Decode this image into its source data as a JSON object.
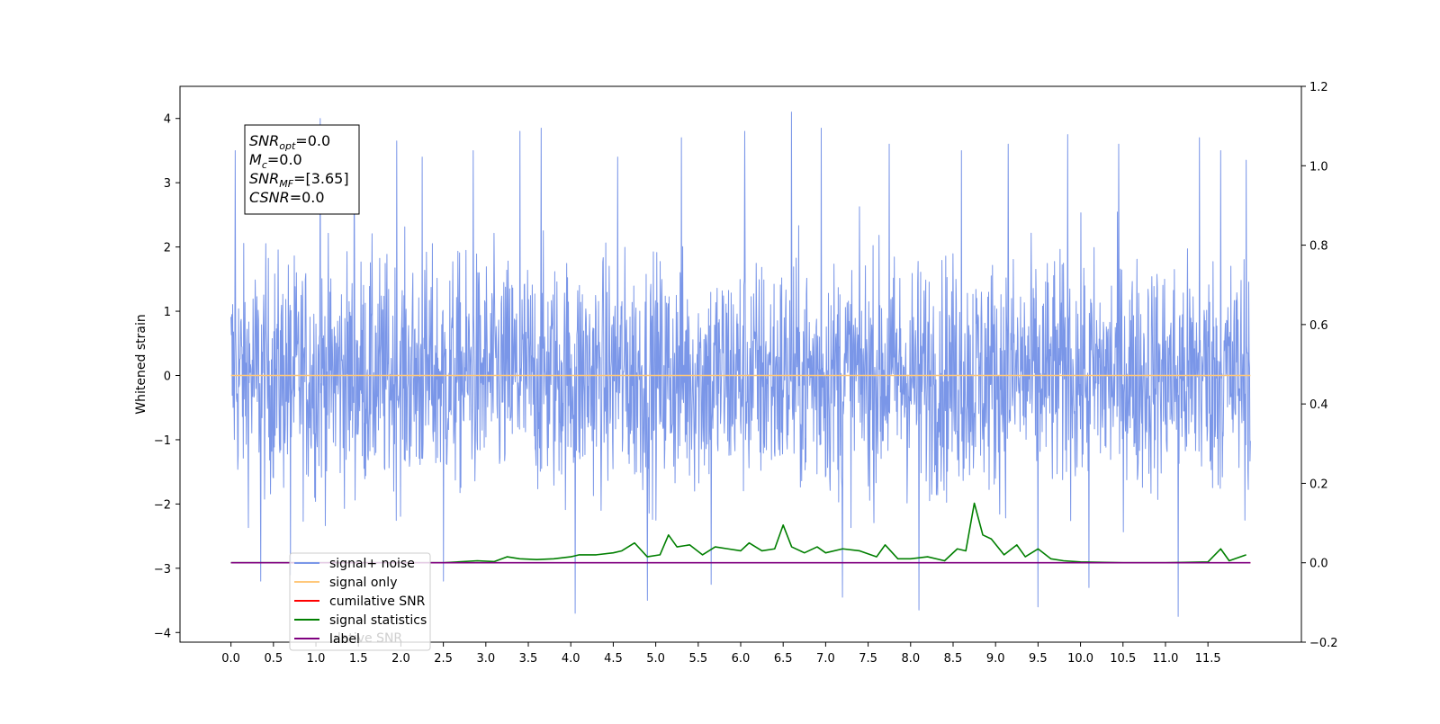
{
  "chart_data": {
    "type": "line",
    "ylabel": "Whitened strain",
    "xlim": [
      -0.6,
      12.6
    ],
    "ylim": [
      -4.15,
      4.5
    ],
    "y2lim": [
      -0.2,
      1.2
    ],
    "x_ticks": [
      "0.0",
      "0.5",
      "1.0",
      "1.5",
      "2.0",
      "2.5",
      "3.0",
      "3.5",
      "4.0",
      "4.5",
      "5.0",
      "5.5",
      "6.0",
      "6.5",
      "7.0",
      "7.5",
      "8.0",
      "8.5",
      "9.0",
      "9.5",
      "10.0",
      "10.5",
      "11.0",
      "11.5"
    ],
    "y_ticks": [
      "4",
      "3",
      "2",
      "1",
      "0",
      "−1",
      "−2",
      "−3",
      "−4"
    ],
    "y2_ticks": [
      "1.2",
      "1.0",
      "0.8",
      "0.6",
      "0.4",
      "0.2",
      "0.0",
      "−0.2"
    ],
    "grid": false,
    "legend_location": "lower-left",
    "info_box": {
      "lines": [
        {
          "main": "SNR",
          "sub": "opt",
          "value": "=0.0"
        },
        {
          "main": "M",
          "sub": "c",
          "value": "=0.0"
        },
        {
          "main": "SNR",
          "sub": "MF",
          "value": "=[3.65]"
        },
        {
          "main": "CSNR",
          "sub": "",
          "value": "=0.0"
        }
      ]
    },
    "series": [
      {
        "name": "signal+ noise",
        "color": "#7a96e8",
        "axis": "left",
        "style": "dense noise around 0, spikes up to 4.1 and down to -3.8",
        "x_range": [
          0.0,
          12.0
        ],
        "spikes": [
          {
            "x": 0.05,
            "y": 3.5
          },
          {
            "x": 0.35,
            "y": -3.2
          },
          {
            "x": 0.7,
            "y": -3.1
          },
          {
            "x": 1.05,
            "y": 4.0
          },
          {
            "x": 1.45,
            "y": 3.7
          },
          {
            "x": 1.95,
            "y": 3.65
          },
          {
            "x": 2.25,
            "y": 3.4
          },
          {
            "x": 2.5,
            "y": -3.2
          },
          {
            "x": 2.85,
            "y": 3.5
          },
          {
            "x": 3.4,
            "y": 3.8
          },
          {
            "x": 3.65,
            "y": 3.85
          },
          {
            "x": 4.05,
            "y": -3.7
          },
          {
            "x": 4.55,
            "y": 3.4
          },
          {
            "x": 4.9,
            "y": -3.5
          },
          {
            "x": 5.3,
            "y": 3.7
          },
          {
            "x": 5.65,
            "y": -3.25
          },
          {
            "x": 6.05,
            "y": 3.8
          },
          {
            "x": 6.6,
            "y": 4.1
          },
          {
            "x": 6.95,
            "y": 3.85
          },
          {
            "x": 7.2,
            "y": -3.45
          },
          {
            "x": 7.75,
            "y": 3.6
          },
          {
            "x": 8.1,
            "y": -3.65
          },
          {
            "x": 8.6,
            "y": 3.5
          },
          {
            "x": 9.15,
            "y": 3.6
          },
          {
            "x": 9.5,
            "y": -3.6
          },
          {
            "x": 9.85,
            "y": 3.75
          },
          {
            "x": 10.1,
            "y": -3.3
          },
          {
            "x": 10.45,
            "y": 3.6
          },
          {
            "x": 11.15,
            "y": -3.75
          },
          {
            "x": 11.4,
            "y": 3.7
          },
          {
            "x": 11.65,
            "y": 3.5
          },
          {
            "x": 11.95,
            "y": 3.35
          }
        ]
      },
      {
        "name": "signal only",
        "color": "#ffc87a",
        "axis": "left",
        "x": [
          0.0,
          12.0
        ],
        "y": [
          0.0,
          0.0
        ]
      },
      {
        "name": "cumilative SNR",
        "color": "#ff0000",
        "axis": "right",
        "x": [
          0.0,
          12.0
        ],
        "y": [
          0.0,
          0.0
        ]
      },
      {
        "name": "signal statistics",
        "color": "#007f00",
        "axis": "right",
        "x": [
          0.0,
          0.5,
          1.0,
          1.5,
          2.0,
          2.5,
          2.9,
          3.1,
          3.25,
          3.4,
          3.6,
          3.8,
          4.0,
          4.1,
          4.3,
          4.5,
          4.6,
          4.75,
          4.9,
          5.05,
          5.15,
          5.25,
          5.4,
          5.55,
          5.7,
          5.85,
          6.0,
          6.1,
          6.25,
          6.4,
          6.5,
          6.6,
          6.75,
          6.9,
          7.0,
          7.2,
          7.4,
          7.6,
          7.7,
          7.85,
          8.0,
          8.2,
          8.4,
          8.55,
          8.65,
          8.75,
          8.85,
          8.95,
          9.1,
          9.25,
          9.35,
          9.5,
          9.65,
          9.8,
          10.0,
          10.5,
          11.0,
          11.5,
          11.65,
          11.75,
          11.95
        ],
        "y": [
          0.0,
          0.0,
          0.0,
          0.0,
          0.0,
          0.0,
          0.005,
          0.003,
          0.015,
          0.01,
          0.008,
          0.01,
          0.015,
          0.02,
          0.02,
          0.025,
          0.03,
          0.05,
          0.015,
          0.02,
          0.07,
          0.04,
          0.045,
          0.02,
          0.04,
          0.035,
          0.03,
          0.05,
          0.03,
          0.035,
          0.095,
          0.04,
          0.025,
          0.04,
          0.025,
          0.035,
          0.03,
          0.015,
          0.045,
          0.01,
          0.01,
          0.015,
          0.005,
          0.035,
          0.03,
          0.15,
          0.07,
          0.06,
          0.02,
          0.045,
          0.015,
          0.035,
          0.01,
          0.005,
          0.002,
          0.0,
          0.0,
          0.002,
          0.035,
          0.005,
          0.02
        ]
      },
      {
        "name": "label",
        "color": "#7f007f",
        "axis": "right",
        "x": [
          0.0,
          12.0
        ],
        "y": [
          0.0,
          0.0
        ]
      }
    ],
    "legend_overlap_text": "ulative SNR"
  }
}
